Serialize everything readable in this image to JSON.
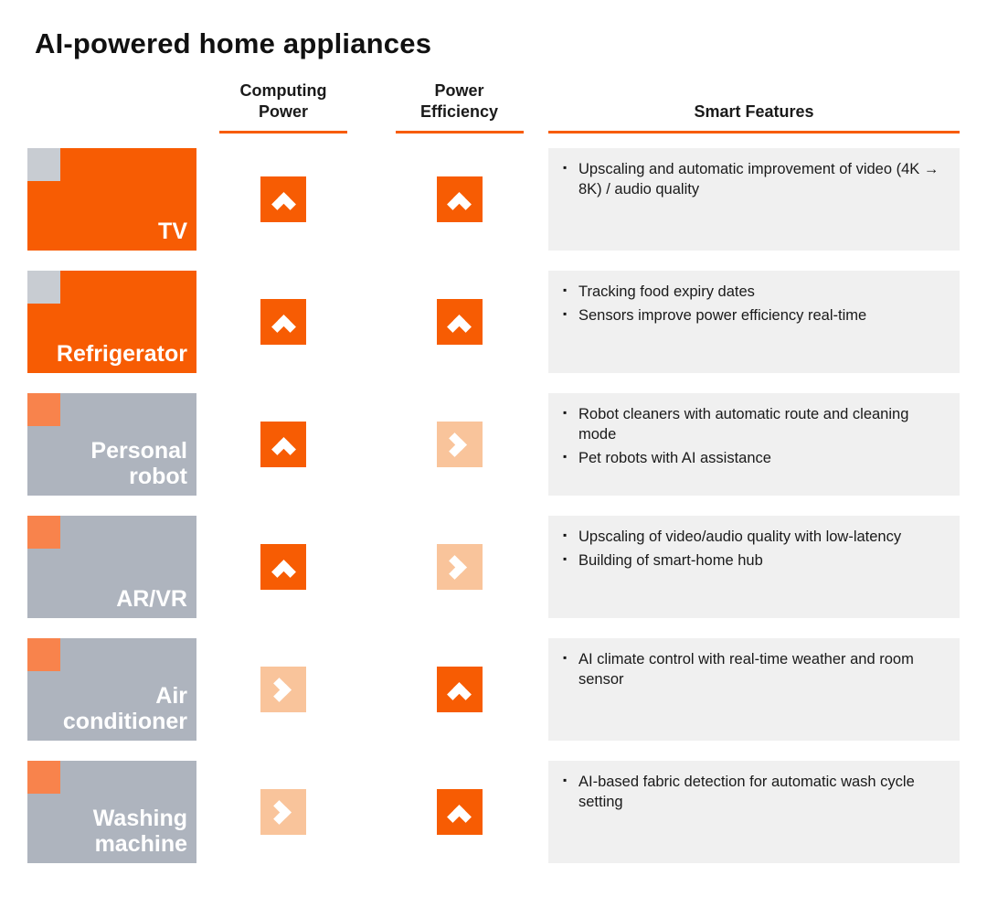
{
  "title": "AI-powered home appliances",
  "colors": {
    "orange": "#F75C03",
    "orange_light": "#F9C49B",
    "orange_corner": "#F8834C",
    "gray_box": "#AEB4BE",
    "gray_corner": "#C8CCD2",
    "features_bg": "#F0F0F0"
  },
  "header": {
    "computing_power": "Computing Power",
    "power_efficiency": "Power Efficiency",
    "smart_features": "Smart Features"
  },
  "rows": [
    {
      "label": "TV",
      "box": "orange",
      "computing": "up",
      "power": "up",
      "features": [
        "Upscaling and automatic improvement of video (4K → 8K) / audio quality"
      ]
    },
    {
      "label": "Refrigerator",
      "box": "orange",
      "computing": "up",
      "power": "up",
      "features": [
        "Tracking food expiry dates",
        "Sensors improve power efficiency real-time"
      ]
    },
    {
      "label": "Personal robot",
      "box": "gray",
      "computing": "up",
      "power": "right",
      "features": [
        "Robot cleaners with automatic route and cleaning mode",
        "Pet robots with AI assistance"
      ]
    },
    {
      "label": "AR/VR",
      "box": "gray",
      "computing": "up",
      "power": "right",
      "features": [
        "Upscaling of video/audio quality with low-latency",
        "Building of smart-home hub"
      ]
    },
    {
      "label": "Air conditioner",
      "box": "gray",
      "computing": "right",
      "power": "up",
      "features": [
        "AI climate control with real-time weather and room sensor"
      ]
    },
    {
      "label": "Washing machine",
      "box": "gray",
      "computing": "right",
      "power": "up",
      "features": [
        "AI-based fabric detection for automatic wash cycle setting"
      ]
    }
  ]
}
